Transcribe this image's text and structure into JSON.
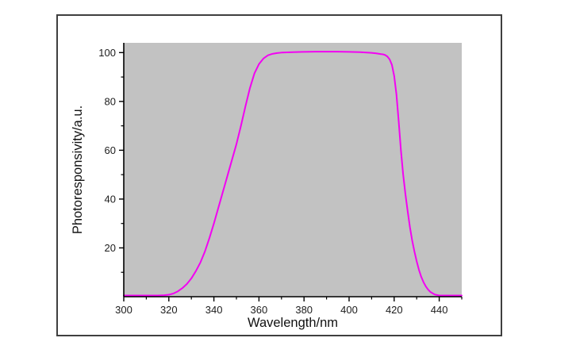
{
  "figure": {
    "background_color": "#ffffff",
    "frame_border_color": "#3f3f3f",
    "plot_background_color": "#c2c2c2",
    "axis_line_color": "#000000",
    "tick_label_color": "#1c1c1c"
  },
  "chart_data": {
    "type": "line",
    "title": "",
    "xlabel": "Wavelength/nm",
    "ylabel": "Photoresponsivity/a.u.",
    "xlim": [
      300,
      450
    ],
    "ylim": [
      0,
      104
    ],
    "grid": false,
    "legend": "none",
    "x_major_ticks": [
      300,
      320,
      340,
      360,
      380,
      400,
      420,
      440
    ],
    "x_minor_ticks": [
      310,
      330,
      350,
      370,
      390,
      410,
      430,
      450
    ],
    "y_major_ticks": [
      20,
      40,
      60,
      80,
      100
    ],
    "y_minor_ticks": [
      10,
      30,
      50,
      70,
      90
    ],
    "series": [
      {
        "name": "photoresponsivity",
        "color": "#f203f2",
        "line_width": 2,
        "x": [
          300,
          305,
          310,
          315,
          318,
          320,
          322,
          324,
          326,
          328,
          330,
          332,
          334,
          336,
          338,
          340,
          342,
          344,
          346,
          348,
          350,
          352,
          354,
          356,
          358,
          360,
          362,
          364,
          366,
          368,
          370,
          375,
          380,
          385,
          390,
          395,
          400,
          405,
          410,
          412,
          414,
          415,
          416,
          417,
          418,
          419,
          420,
          421,
          422,
          423,
          424,
          425,
          426,
          427,
          428,
          429,
          430,
          431,
          432,
          433,
          434,
          435,
          436,
          438,
          440,
          445,
          450
        ],
        "y": [
          0.5,
          0.5,
          0.5,
          0.5,
          0.6,
          0.8,
          1.3,
          2.2,
          3.5,
          5.2,
          7.5,
          10.5,
          14,
          18.5,
          24,
          30,
          36.5,
          43,
          49.5,
          56,
          62.5,
          70,
          78,
          85.5,
          91.5,
          95.3,
          97.6,
          98.9,
          99.5,
          99.8,
          100,
          100.2,
          100.3,
          100.4,
          100.4,
          100.4,
          100.3,
          100.2,
          99.9,
          99.7,
          99.4,
          99.3,
          99,
          98.4,
          97.2,
          95,
          90.5,
          83,
          72,
          60,
          50,
          42,
          35,
          28.5,
          23,
          18.5,
          14.5,
          11,
          8.2,
          6,
          4.3,
          3,
          2,
          0.9,
          0.5,
          0.5,
          0.5
        ]
      }
    ]
  }
}
